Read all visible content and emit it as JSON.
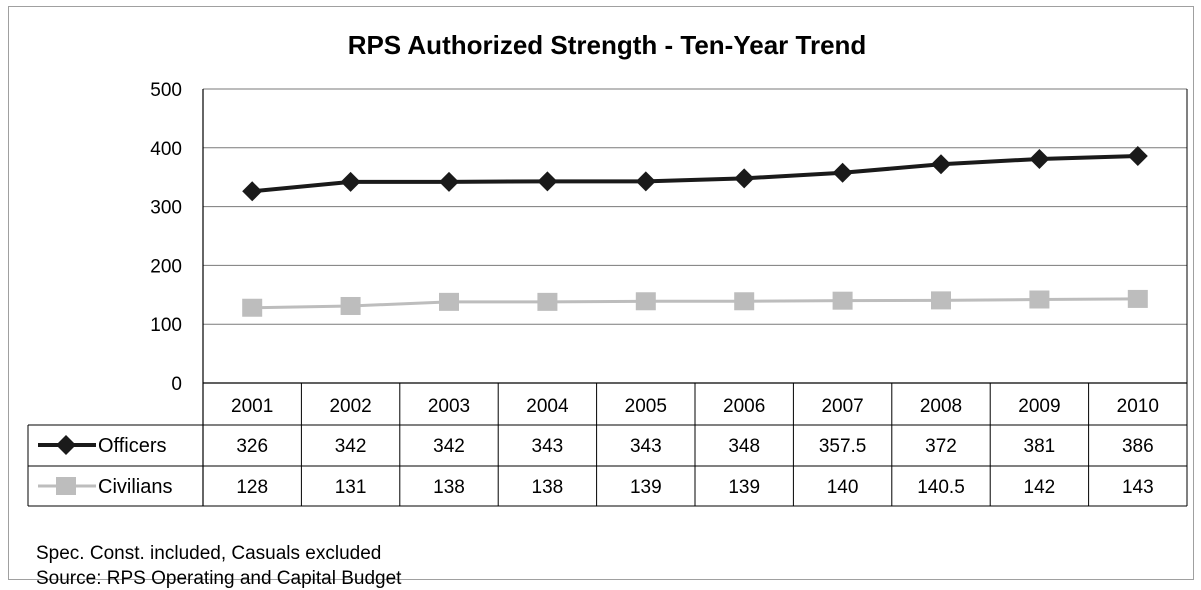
{
  "chart_data": {
    "type": "line",
    "title": "RPS Authorized Strength - Ten-Year Trend",
    "categories": [
      "2001",
      "2002",
      "2003",
      "2004",
      "2005",
      "2006",
      "2007",
      "2008",
      "2009",
      "2010"
    ],
    "ylim": [
      0,
      500
    ],
    "yticks": [
      0,
      100,
      200,
      300,
      400,
      500
    ],
    "grid": true,
    "legend": "data-table",
    "series": [
      {
        "name": "Officers",
        "values": [
          326,
          342,
          342,
          343,
          343,
          348,
          357.5,
          372,
          381,
          386
        ],
        "labels": [
          "326",
          "342",
          "342",
          "343",
          "343",
          "348",
          "357.5",
          "372",
          "381",
          "386"
        ],
        "color": "#1a1a1a",
        "marker": "diamond"
      },
      {
        "name": "Civilians",
        "values": [
          128,
          131,
          138,
          138,
          139,
          139,
          140,
          140.5,
          142,
          143
        ],
        "labels": [
          "128",
          "131",
          "138",
          "138",
          "139",
          "139",
          "140",
          "140.5",
          "142",
          "143"
        ],
        "color": "#bdbdbd",
        "marker": "square"
      }
    ]
  },
  "notes": {
    "line1": "Spec. Const. included, Casuals excluded",
    "line2": "Source: RPS Operating and Capital Budget"
  }
}
